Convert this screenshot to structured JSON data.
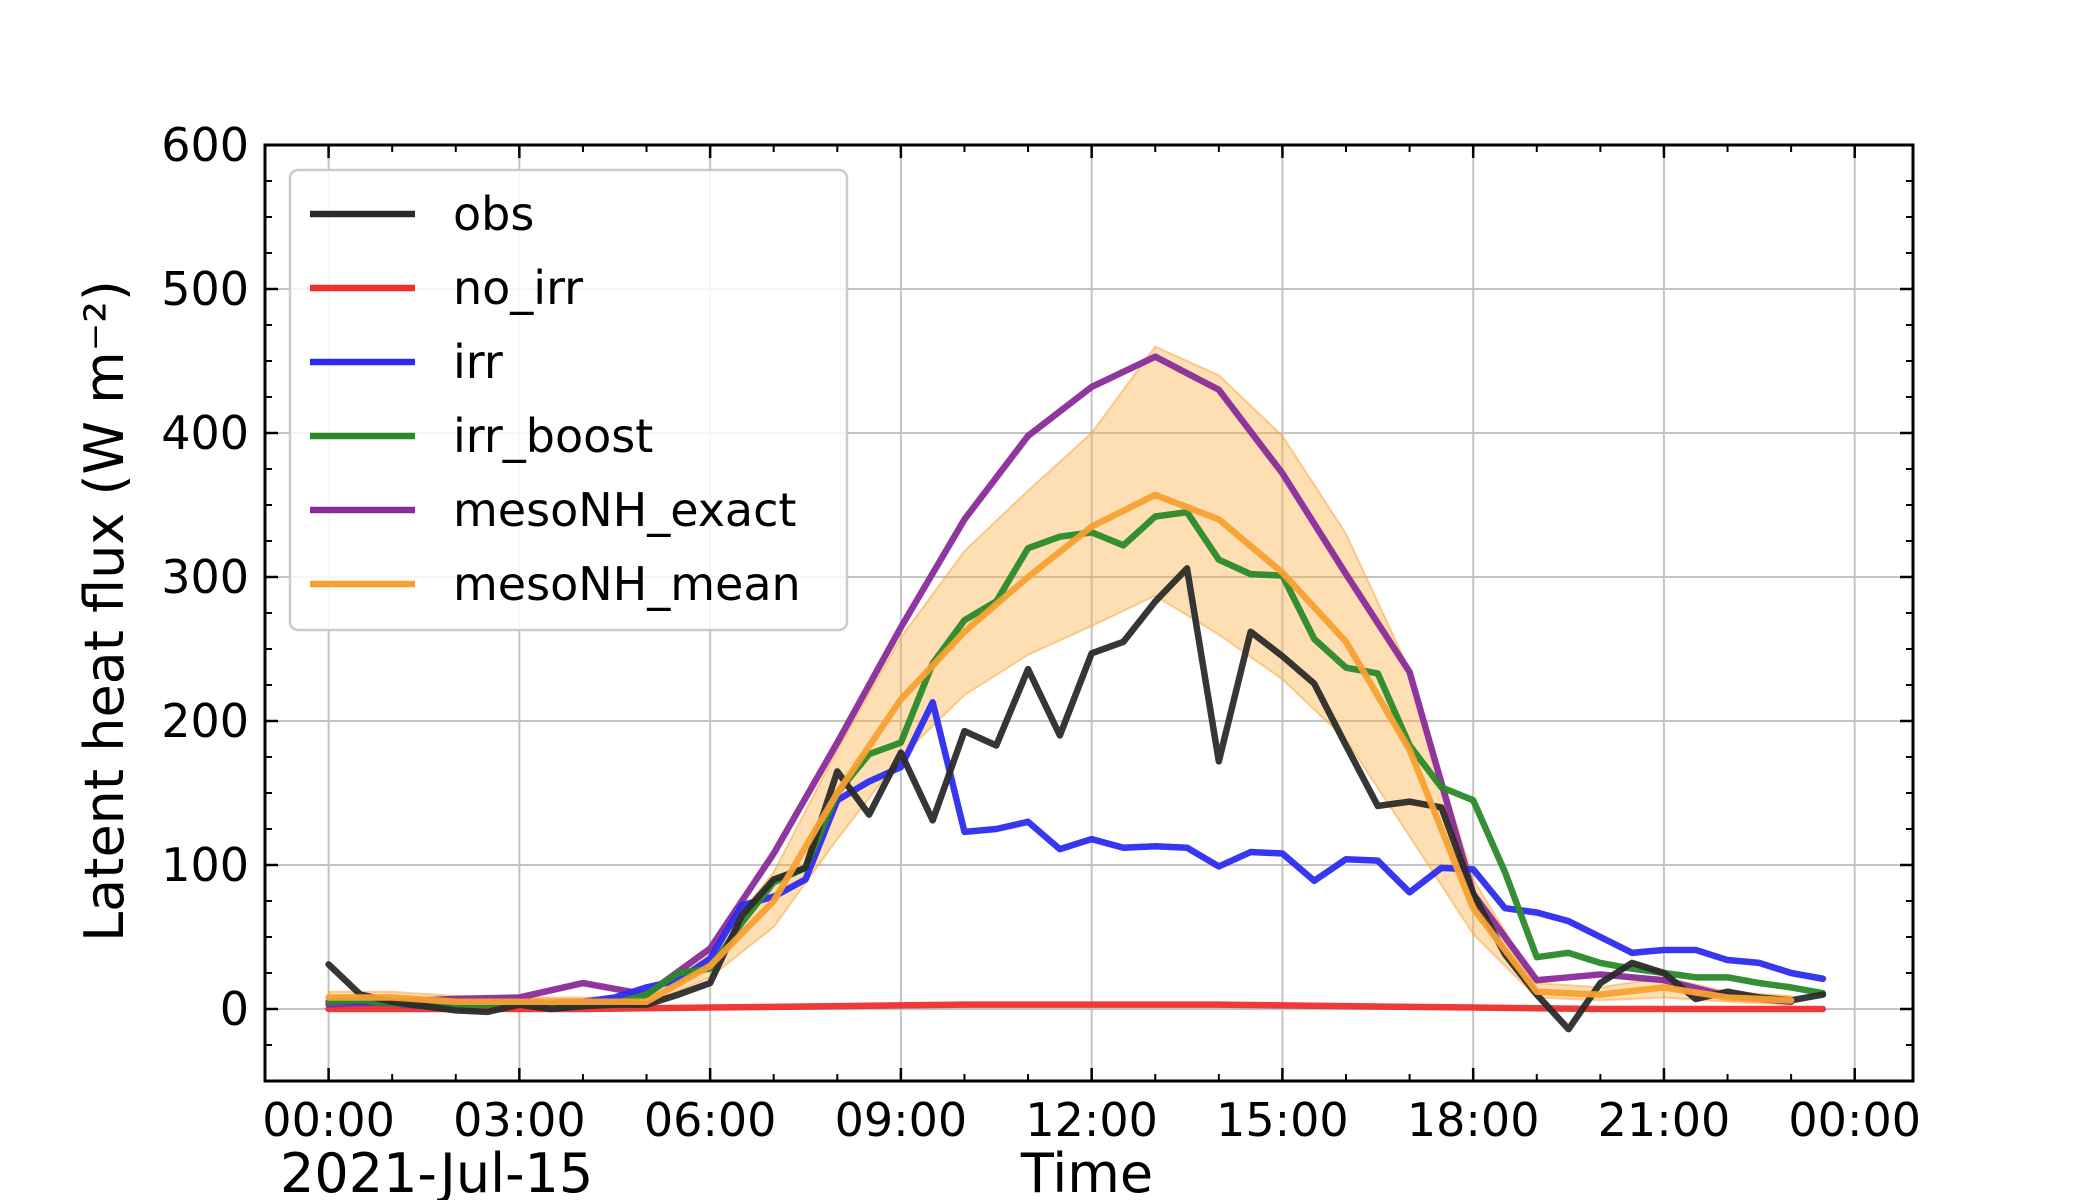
{
  "chart_data": {
    "type": "line",
    "xlabel": "Time",
    "ylabel": "Latent heat flux (W m⁻²)",
    "date_label": "2021-Jul-15",
    "xlim": [
      "2021-07-15 23:00",
      "2021-07-17 00:55"
    ],
    "ylim": [
      -50,
      600
    ],
    "x_tick_labels": [
      "00:00",
      "03:00",
      "06:00",
      "09:00",
      "12:00",
      "15:00",
      "18:00",
      "21:00",
      "00:00"
    ],
    "y_tick_labels": [
      "0",
      "100",
      "200",
      "300",
      "400",
      "500",
      "600"
    ],
    "y_ticks": [
      0,
      100,
      200,
      300,
      400,
      500,
      600
    ],
    "x_ticks": [
      "2021-07-16 00:00",
      "2021-07-16 03:00",
      "2021-07-16 06:00",
      "2021-07-16 09:00",
      "2021-07-16 12:00",
      "2021-07-16 15:00",
      "2021-07-16 18:00",
      "2021-07-16 21:00",
      "2021-07-17 00:00"
    ],
    "grid": true,
    "legend_position": "top-left",
    "series": [
      {
        "name": "obs",
        "color": "#2b2b2b",
        "x": [
          "2021-07-16 00:00",
          "2021-07-16 00:30",
          "2021-07-16 01:00",
          "2021-07-16 01:30",
          "2021-07-16 02:00",
          "2021-07-16 02:30",
          "2021-07-16 03:00",
          "2021-07-16 03:30",
          "2021-07-16 04:00",
          "2021-07-16 04:30",
          "2021-07-16 05:00",
          "2021-07-16 05:30",
          "2021-07-16 06:00",
          "2021-07-16 06:30",
          "2021-07-16 07:00",
          "2021-07-16 07:30",
          "2021-07-16 08:00",
          "2021-07-16 08:30",
          "2021-07-16 09:00",
          "2021-07-16 09:30",
          "2021-07-16 10:00",
          "2021-07-16 10:30",
          "2021-07-16 11:00",
          "2021-07-16 11:30",
          "2021-07-16 12:00",
          "2021-07-16 12:30",
          "2021-07-16 13:00",
          "2021-07-16 13:30",
          "2021-07-16 14:00",
          "2021-07-16 14:30",
          "2021-07-16 15:00",
          "2021-07-16 15:30",
          "2021-07-16 16:00",
          "2021-07-16 16:30",
          "2021-07-16 17:00",
          "2021-07-16 17:30",
          "2021-07-16 18:00",
          "2021-07-16 18:30",
          "2021-07-16 19:00",
          "2021-07-16 19:30",
          "2021-07-16 20:00",
          "2021-07-16 20:30",
          "2021-07-16 21:00",
          "2021-07-16 21:30",
          "2021-07-16 22:00",
          "2021-07-16 22:30",
          "2021-07-16 23:00",
          "2021-07-16 23:30"
        ],
        "values": [
          31,
          10,
          5,
          2,
          -1,
          -2,
          3,
          0,
          2,
          3,
          3,
          10,
          18,
          65,
          90,
          98,
          165,
          135,
          178,
          131,
          193,
          183,
          236,
          190,
          247,
          255,
          283,
          306,
          172,
          262,
          245,
          226,
          183,
          141,
          144,
          140,
          80,
          38,
          10,
          -14,
          18,
          32,
          25,
          7,
          12,
          8,
          6,
          10
        ]
      },
      {
        "name": "no_irr",
        "color": "#ef2e2e",
        "x": [
          "2021-07-16 00:00",
          "2021-07-16 02:00",
          "2021-07-16 04:00",
          "2021-07-16 06:00",
          "2021-07-16 08:00",
          "2021-07-16 10:00",
          "2021-07-16 12:00",
          "2021-07-16 14:00",
          "2021-07-16 16:00",
          "2021-07-16 18:00",
          "2021-07-16 20:00",
          "2021-07-16 22:00",
          "2021-07-16 23:30"
        ],
        "values": [
          0,
          0,
          0,
          1,
          2,
          3,
          3,
          3,
          2,
          1,
          0,
          0,
          0
        ]
      },
      {
        "name": "irr",
        "color": "#2c2cf0",
        "x": [
          "2021-07-16 00:00",
          "2021-07-16 00:30",
          "2021-07-16 01:00",
          "2021-07-16 01:30",
          "2021-07-16 02:00",
          "2021-07-16 02:30",
          "2021-07-16 03:00",
          "2021-07-16 03:30",
          "2021-07-16 04:00",
          "2021-07-16 04:30",
          "2021-07-16 05:00",
          "2021-07-16 05:30",
          "2021-07-16 06:00",
          "2021-07-16 06:30",
          "2021-07-16 07:00",
          "2021-07-16 07:30",
          "2021-07-16 08:00",
          "2021-07-16 08:30",
          "2021-07-16 09:00",
          "2021-07-16 09:30",
          "2021-07-16 10:00",
          "2021-07-16 10:30",
          "2021-07-16 11:00",
          "2021-07-16 11:30",
          "2021-07-16 12:00",
          "2021-07-16 12:30",
          "2021-07-16 13:00",
          "2021-07-16 13:30",
          "2021-07-16 14:00",
          "2021-07-16 14:30",
          "2021-07-16 15:00",
          "2021-07-16 15:30",
          "2021-07-16 16:00",
          "2021-07-16 16:30",
          "2021-07-16 17:00",
          "2021-07-16 17:30",
          "2021-07-16 18:00",
          "2021-07-16 18:30",
          "2021-07-16 19:00",
          "2021-07-16 19:30",
          "2021-07-16 20:00",
          "2021-07-16 20:30",
          "2021-07-16 21:00",
          "2021-07-16 21:30",
          "2021-07-16 22:00",
          "2021-07-16 22:30",
          "2021-07-16 23:00",
          "2021-07-16 23:30"
        ],
        "values": [
          5,
          5,
          4,
          2,
          3,
          4,
          5,
          4,
          5,
          8,
          15,
          20,
          35,
          72,
          78,
          90,
          145,
          158,
          168,
          213,
          123,
          125,
          130,
          111,
          118,
          112,
          113,
          112,
          99,
          109,
          108,
          89,
          104,
          103,
          81,
          98,
          97,
          70,
          67,
          61,
          50,
          39,
          41,
          41,
          34,
          32,
          25,
          21
        ]
      },
      {
        "name": "irr_boost",
        "color": "#2a8a2a",
        "x": [
          "2021-07-16 00:00",
          "2021-07-16 00:30",
          "2021-07-16 01:00",
          "2021-07-16 01:30",
          "2021-07-16 02:00",
          "2021-07-16 02:30",
          "2021-07-16 03:00",
          "2021-07-16 03:30",
          "2021-07-16 04:00",
          "2021-07-16 04:30",
          "2021-07-16 05:00",
          "2021-07-16 05:30",
          "2021-07-16 06:00",
          "2021-07-16 06:30",
          "2021-07-16 07:00",
          "2021-07-16 07:30",
          "2021-07-16 08:00",
          "2021-07-16 08:30",
          "2021-07-16 09:00",
          "2021-07-16 09:30",
          "2021-07-16 10:00",
          "2021-07-16 10:30",
          "2021-07-16 11:00",
          "2021-07-16 11:30",
          "2021-07-16 12:00",
          "2021-07-16 12:30",
          "2021-07-16 13:00",
          "2021-07-16 13:30",
          "2021-07-16 14:00",
          "2021-07-16 14:30",
          "2021-07-16 15:00",
          "2021-07-16 15:30",
          "2021-07-16 16:00",
          "2021-07-16 16:30",
          "2021-07-16 17:00",
          "2021-07-16 17:30",
          "2021-07-16 18:00",
          "2021-07-16 18:30",
          "2021-07-16 19:00",
          "2021-07-16 19:30",
          "2021-07-16 20:00",
          "2021-07-16 20:30",
          "2021-07-16 21:00",
          "2021-07-16 21:30",
          "2021-07-16 22:00",
          "2021-07-16 22:30",
          "2021-07-16 23:00",
          "2021-07-16 23:30"
        ],
        "values": [
          5,
          6,
          4,
          3,
          2,
          3,
          3,
          2,
          2,
          4,
          10,
          25,
          28,
          60,
          88,
          98,
          150,
          177,
          185,
          240,
          270,
          283,
          320,
          328,
          331,
          322,
          342,
          345,
          312,
          302,
          301,
          257,
          237,
          233,
          183,
          154,
          145,
          95,
          36,
          39,
          32,
          28,
          25,
          22,
          22,
          18,
          15,
          11
        ]
      },
      {
        "name": "mesoNH_exact",
        "color": "#8a2b9a",
        "x": [
          "2021-07-16 00:00",
          "2021-07-16 01:00",
          "2021-07-16 02:00",
          "2021-07-16 03:00",
          "2021-07-16 04:00",
          "2021-07-16 05:00",
          "2021-07-16 06:00",
          "2021-07-16 07:00",
          "2021-07-16 08:00",
          "2021-07-16 09:00",
          "2021-07-16 10:00",
          "2021-07-16 11:00",
          "2021-07-16 12:00",
          "2021-07-16 13:00",
          "2021-07-16 14:00",
          "2021-07-16 15:00",
          "2021-07-16 16:00",
          "2021-07-16 17:00",
          "2021-07-16 18:00",
          "2021-07-16 19:00",
          "2021-07-16 20:00",
          "2021-07-16 21:00",
          "2021-07-16 22:00",
          "2021-07-16 23:00"
        ],
        "values": [
          3,
          5,
          7,
          8,
          18,
          10,
          42,
          108,
          185,
          265,
          340,
          398,
          432,
          453,
          430,
          372,
          302,
          234,
          80,
          20,
          24,
          20,
          9,
          5
        ]
      },
      {
        "name": "mesoNH_mean",
        "color": "#f7a032",
        "x": [
          "2021-07-16 00:00",
          "2021-07-16 01:00",
          "2021-07-16 02:00",
          "2021-07-16 03:00",
          "2021-07-16 04:00",
          "2021-07-16 05:00",
          "2021-07-16 06:00",
          "2021-07-16 07:00",
          "2021-07-16 08:00",
          "2021-07-16 09:00",
          "2021-07-16 10:00",
          "2021-07-16 11:00",
          "2021-07-16 12:00",
          "2021-07-16 13:00",
          "2021-07-16 14:00",
          "2021-07-16 15:00",
          "2021-07-16 16:00",
          "2021-07-16 17:00",
          "2021-07-16 18:00",
          "2021-07-16 19:00",
          "2021-07-16 20:00",
          "2021-07-16 21:00",
          "2021-07-16 22:00",
          "2021-07-16 23:00"
        ],
        "values": [
          8,
          8,
          5,
          5,
          5,
          5,
          30,
          75,
          150,
          215,
          262,
          300,
          335,
          357,
          340,
          303,
          255,
          180,
          70,
          12,
          10,
          15,
          8,
          6
        ],
        "band_lower": [
          3,
          4,
          3,
          3,
          3,
          3,
          22,
          57,
          118,
          175,
          218,
          246,
          266,
          287,
          260,
          229,
          187,
          120,
          52,
          8,
          6,
          8,
          5,
          3
        ],
        "band_upper": [
          12,
          12,
          9,
          8,
          8,
          8,
          40,
          95,
          180,
          258,
          318,
          360,
          400,
          460,
          440,
          398,
          330,
          235,
          90,
          18,
          15,
          22,
          12,
          9
        ]
      }
    ]
  }
}
